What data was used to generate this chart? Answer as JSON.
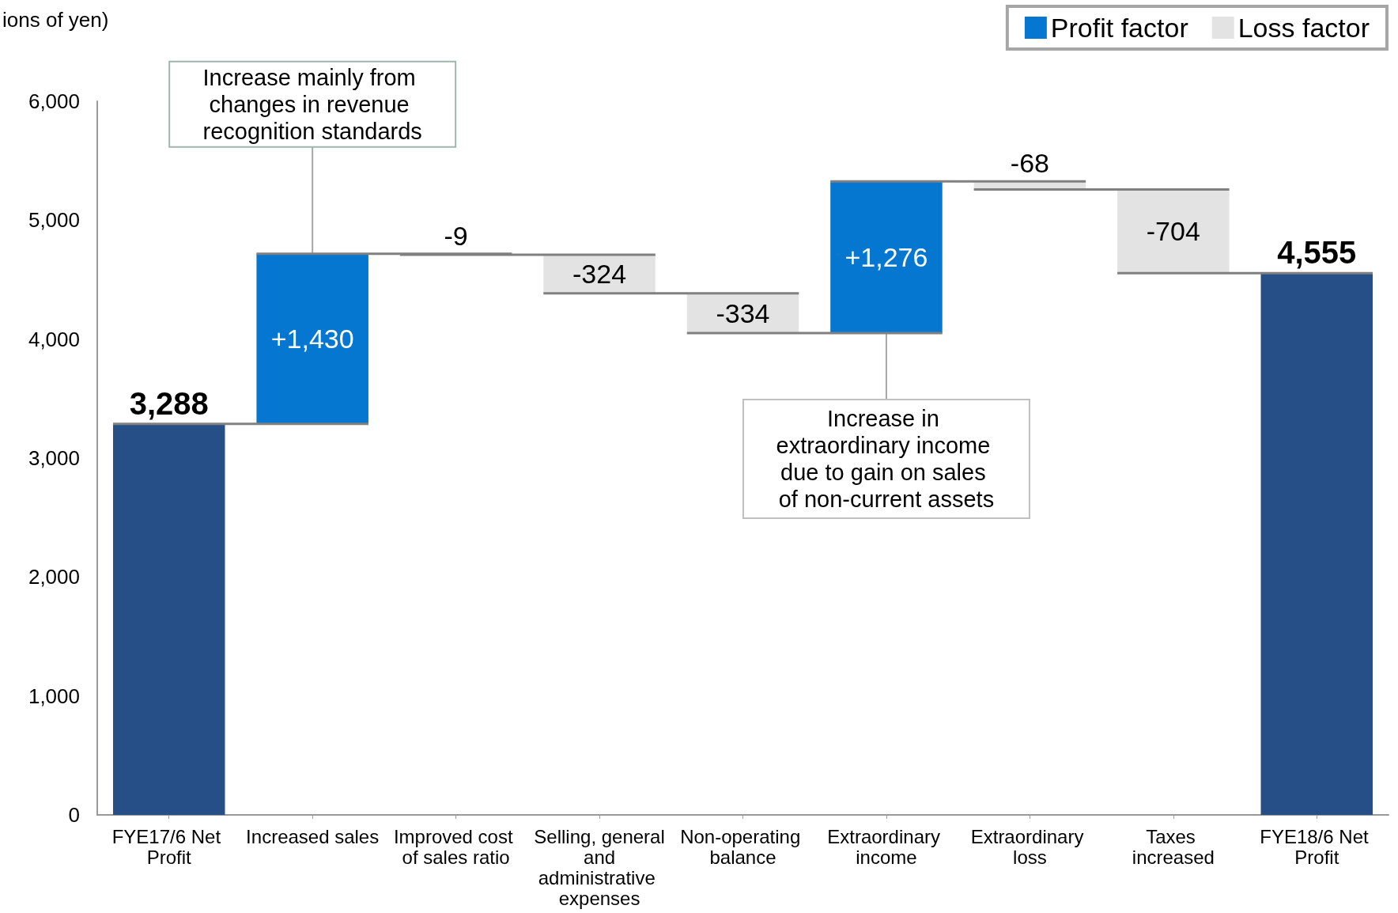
{
  "chart_data": {
    "type": "bar",
    "ylabel": "ions of yen)",
    "categories": [
      "FYE17/6 Net Profit",
      "Increased sales",
      "Improved cost of sales ratio",
      "Selling, general and administrative expenses",
      "Non-operating balance",
      "Extraordinary income",
      "Extraordinary loss",
      "Taxes increased",
      "FYE18/6 Net Profit"
    ],
    "series": [
      {
        "color": "#264f87",
        "values": [
          3288,
          null,
          null,
          null,
          null,
          null,
          null,
          null,
          4555
        ],
        "base": [
          0,
          null,
          null,
          null,
          null,
          null,
          null,
          null,
          0
        ],
        "value_labels": [
          "3,288",
          null,
          null,
          null,
          null,
          null,
          null,
          null,
          "4,555"
        ]
      },
      {
        "name": "Profit factor",
        "color": "#0677d0",
        "values": [
          null,
          1430,
          null,
          null,
          null,
          1276,
          null,
          null,
          null
        ],
        "base": [
          null,
          3288,
          null,
          null,
          null,
          4051,
          null,
          null,
          null
        ],
        "value_labels": [
          null,
          "+1,430",
          null,
          null,
          null,
          "+1,276",
          null,
          null,
          null
        ]
      },
      {
        "name": "Loss factor",
        "color": "#e3e3e3",
        "values": [
          null,
          null,
          -9,
          -324,
          -334,
          null,
          -68,
          -704,
          null
        ],
        "base": [
          null,
          null,
          4718,
          4709,
          4385,
          null,
          5327,
          5259,
          null
        ],
        "value_labels": [
          null,
          null,
          "-9",
          "-324",
          "-334",
          null,
          "-68",
          "-704",
          null
        ]
      }
    ],
    "ylim": [
      0,
      6000
    ],
    "yticks": [
      {
        "value": 0,
        "label": "0"
      },
      {
        "value": 1000,
        "label": "1,000"
      },
      {
        "value": 2000,
        "label": "2,000"
      },
      {
        "value": 3000,
        "label": "3,000"
      },
      {
        "value": 4000,
        "label": "4,000"
      },
      {
        "value": 5000,
        "label": "5,000"
      },
      {
        "value": 6000,
        "label": "6,000"
      }
    ],
    "legend": "top right",
    "grid": false,
    "annotations": [
      {
        "text": "Increase mainly from changes in revenue recognition standards",
        "x": "Increased sales",
        "y": 4718
      },
      {
        "text": "Increase in extraordinary income due to gain on sales of non-current assets",
        "x": "Extraordinary income",
        "y": 4051
      }
    ]
  }
}
